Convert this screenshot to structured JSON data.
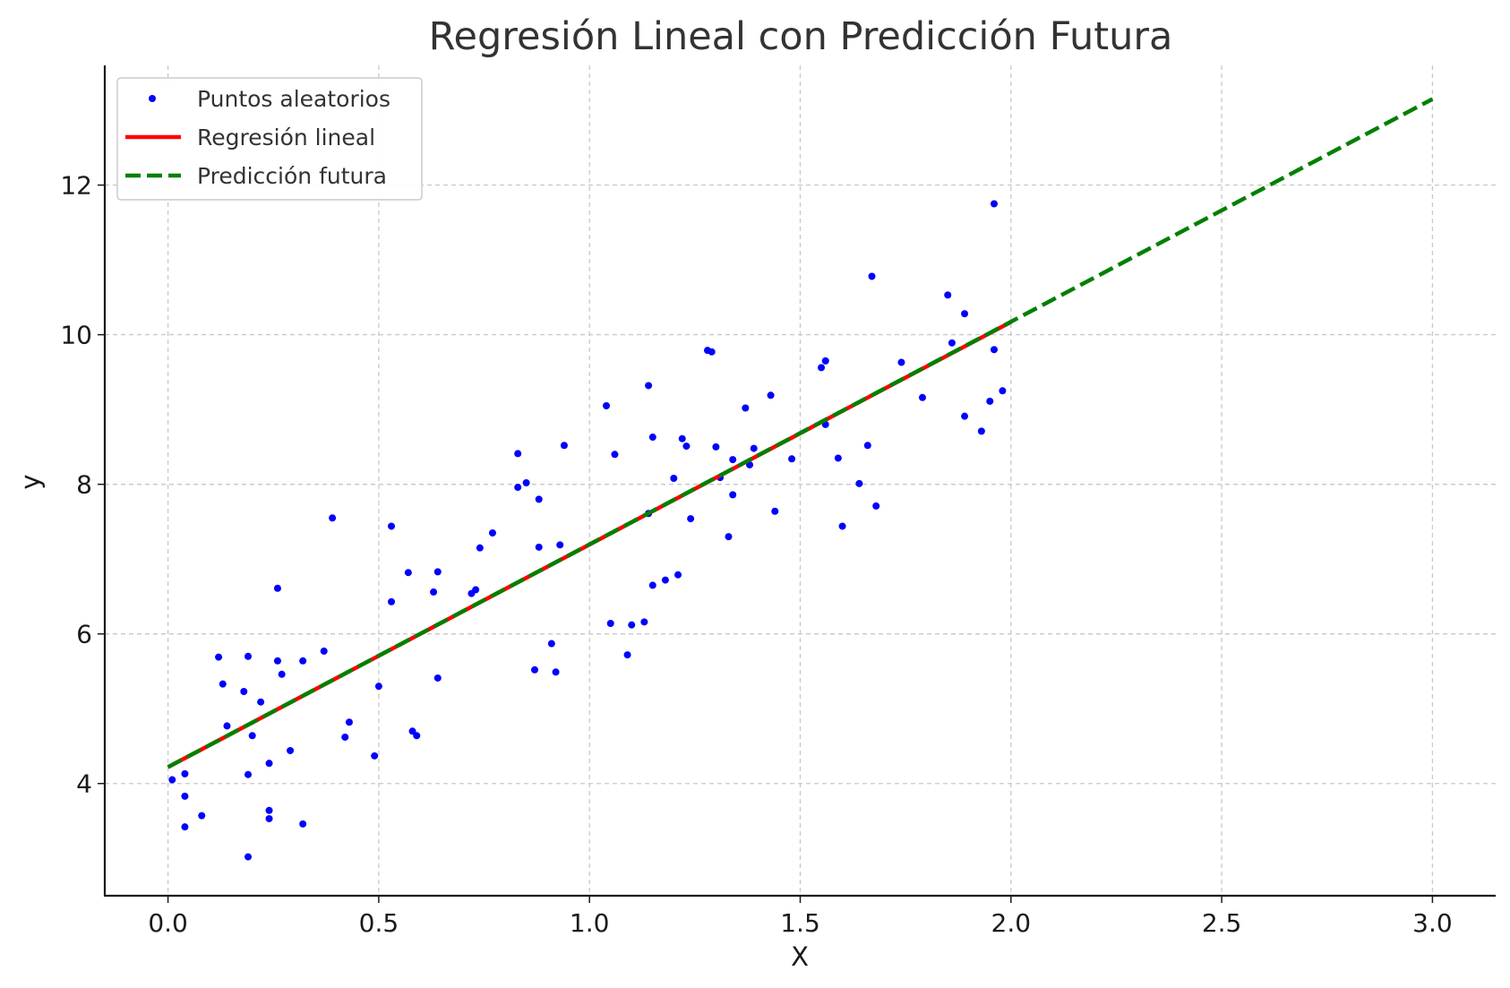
{
  "chart_data": {
    "type": "scatter",
    "title": "Regresión Lineal con Predicción Futura",
    "xlabel": "X",
    "ylabel": "y",
    "xlim": [
      -0.15,
      3.15
    ],
    "ylim": [
      2.5,
      13.6
    ],
    "x_ticks": [
      0.0,
      0.5,
      1.0,
      1.5,
      2.0,
      2.5,
      3.0
    ],
    "x_tick_labels": [
      "0.0",
      "0.5",
      "1.0",
      "1.5",
      "2.0",
      "2.5",
      "3.0"
    ],
    "y_ticks": [
      4,
      6,
      8,
      10,
      12
    ],
    "y_tick_labels": [
      "4",
      "6",
      "8",
      "10",
      "12"
    ],
    "grid": true,
    "legend_position": "top-left",
    "series": [
      {
        "name": "Puntos aleatorios",
        "kind": "scatter",
        "color": "#0000ff",
        "points": [
          [
            0.01,
            4.05
          ],
          [
            0.04,
            4.13
          ],
          [
            0.04,
            3.83
          ],
          [
            0.04,
            3.42
          ],
          [
            0.08,
            3.57
          ],
          [
            0.12,
            5.69
          ],
          [
            0.13,
            5.33
          ],
          [
            0.14,
            4.77
          ],
          [
            0.18,
            5.23
          ],
          [
            0.19,
            4.12
          ],
          [
            0.19,
            3.02
          ],
          [
            0.19,
            5.7
          ],
          [
            0.2,
            4.64
          ],
          [
            0.22,
            5.09
          ],
          [
            0.24,
            4.27
          ],
          [
            0.24,
            3.64
          ],
          [
            0.24,
            3.53
          ],
          [
            0.26,
            6.61
          ],
          [
            0.26,
            5.64
          ],
          [
            0.27,
            5.46
          ],
          [
            0.29,
            4.44
          ],
          [
            0.32,
            3.46
          ],
          [
            0.32,
            5.64
          ],
          [
            0.37,
            5.77
          ],
          [
            0.39,
            7.55
          ],
          [
            0.42,
            4.62
          ],
          [
            0.43,
            4.82
          ],
          [
            0.49,
            4.37
          ],
          [
            0.5,
            5.3
          ],
          [
            0.53,
            7.44
          ],
          [
            0.53,
            6.43
          ],
          [
            0.57,
            6.82
          ],
          [
            0.58,
            4.7
          ],
          [
            0.59,
            4.64
          ],
          [
            0.63,
            6.56
          ],
          [
            0.64,
            5.41
          ],
          [
            0.64,
            6.83
          ],
          [
            0.72,
            6.54
          ],
          [
            0.73,
            6.59
          ],
          [
            0.74,
            7.15
          ],
          [
            0.77,
            7.35
          ],
          [
            0.83,
            8.41
          ],
          [
            0.83,
            7.96
          ],
          [
            0.85,
            8.02
          ],
          [
            0.87,
            5.52
          ],
          [
            0.88,
            7.8
          ],
          [
            0.88,
            7.16
          ],
          [
            0.91,
            5.87
          ],
          [
            0.92,
            5.49
          ],
          [
            0.93,
            7.19
          ],
          [
            0.94,
            8.52
          ],
          [
            1.04,
            9.05
          ],
          [
            1.05,
            6.14
          ],
          [
            1.06,
            8.4
          ],
          [
            1.09,
            5.72
          ],
          [
            1.1,
            6.12
          ],
          [
            1.13,
            6.16
          ],
          [
            1.14,
            9.32
          ],
          [
            1.14,
            7.61
          ],
          [
            1.15,
            6.65
          ],
          [
            1.15,
            8.63
          ],
          [
            1.18,
            6.72
          ],
          [
            1.2,
            8.08
          ],
          [
            1.21,
            6.79
          ],
          [
            1.22,
            8.61
          ],
          [
            1.23,
            8.51
          ],
          [
            1.24,
            7.54
          ],
          [
            1.28,
            9.79
          ],
          [
            1.29,
            9.77
          ],
          [
            1.3,
            8.5
          ],
          [
            1.31,
            8.09
          ],
          [
            1.33,
            7.3
          ],
          [
            1.34,
            8.33
          ],
          [
            1.34,
            7.86
          ],
          [
            1.37,
            9.02
          ],
          [
            1.38,
            8.26
          ],
          [
            1.39,
            8.48
          ],
          [
            1.43,
            9.19
          ],
          [
            1.44,
            7.64
          ],
          [
            1.48,
            8.34
          ],
          [
            1.55,
            9.56
          ],
          [
            1.56,
            9.65
          ],
          [
            1.56,
            8.8
          ],
          [
            1.59,
            8.35
          ],
          [
            1.6,
            7.44
          ],
          [
            1.64,
            8.01
          ],
          [
            1.66,
            8.52
          ],
          [
            1.67,
            10.78
          ],
          [
            1.68,
            7.71
          ],
          [
            1.74,
            9.63
          ],
          [
            1.79,
            9.16
          ],
          [
            1.85,
            10.53
          ],
          [
            1.86,
            9.89
          ],
          [
            1.89,
            10.28
          ],
          [
            1.89,
            8.91
          ],
          [
            1.93,
            8.71
          ],
          [
            1.95,
            9.11
          ],
          [
            1.96,
            9.8
          ],
          [
            1.96,
            11.75
          ],
          [
            1.98,
            9.25
          ]
        ]
      },
      {
        "name": "Regresión lineal",
        "kind": "line",
        "color": "#ff0000",
        "points": [
          [
            0.0,
            4.22
          ],
          [
            2.0,
            10.17
          ]
        ]
      },
      {
        "name": "Predicción futura",
        "kind": "dashed-line",
        "color": "#008000",
        "points": [
          [
            0.0,
            4.22
          ],
          [
            3.0,
            13.15
          ]
        ]
      }
    ]
  }
}
